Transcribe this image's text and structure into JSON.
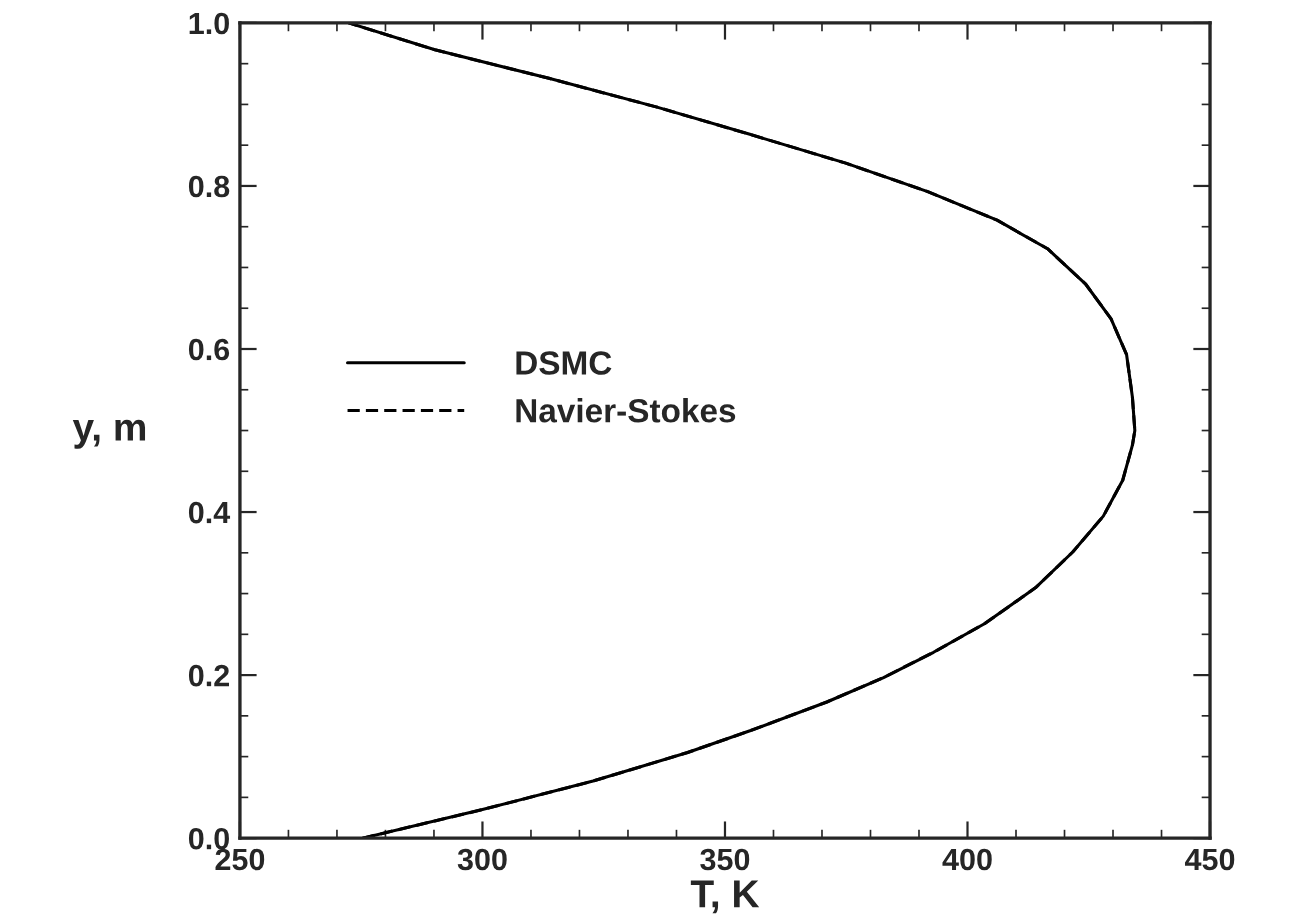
{
  "chart_data": {
    "type": "line",
    "xlabel": "T, K",
    "ylabel": "y, m",
    "xlim": [
      250,
      450
    ],
    "xticks": [
      250,
      300,
      350,
      400,
      450
    ],
    "ylim": [
      0,
      1
    ],
    "yticks": [
      {
        "value": 0,
        "label": "0.0"
      },
      {
        "value": 0.2,
        "label": "0.2"
      },
      {
        "value": 0.4,
        "label": "0.4"
      },
      {
        "value": 0.6,
        "label": "0.6"
      },
      {
        "value": 0.8,
        "label": "0.8"
      },
      {
        "value": 1,
        "label": "1.0"
      }
    ],
    "grid": false,
    "legend": "left",
    "marker": "none",
    "series": [
      {
        "name": "DSMC",
        "color": "#000000",
        "line_style": "solid",
        "x": [
          275.3,
          300,
          322.8,
          342.3,
          355.3,
          371,
          382.7,
          393,
          403.5,
          414,
          421.7,
          428,
          432,
          434,
          434.5,
          434,
          432.8,
          429.6,
          424.3,
          416.5,
          406.1,
          391.8,
          374.9,
          355.3,
          335.8,
          313.7,
          290.2,
          272.4
        ],
        "values": [
          0,
          0.035,
          0.07,
          0.105,
          0.132,
          0.167,
          0.197,
          0.228,
          0.263,
          0.307,
          0.351,
          0.395,
          0.439,
          0.482,
          0.5,
          0.541,
          0.593,
          0.637,
          0.68,
          0.723,
          0.758,
          0.793,
          0.828,
          0.863,
          0.897,
          0.932,
          0.967,
          1.0
        ]
      },
      {
        "name": "Navier-Stokes",
        "color": "#000000",
        "line_style": "dashed",
        "x": [
          275.3,
          300,
          322.8,
          342.3,
          355.3,
          371,
          382.7,
          393,
          403.5,
          414,
          421.7,
          428,
          432,
          434,
          434.5,
          434,
          432.8,
          429.6,
          424.3,
          416.5,
          406.1,
          391.8,
          374.9,
          355.3,
          335.8,
          313.7,
          290.2,
          272.4
        ],
        "values": [
          0,
          0.035,
          0.07,
          0.105,
          0.132,
          0.167,
          0.197,
          0.228,
          0.263,
          0.307,
          0.351,
          0.395,
          0.439,
          0.482,
          0.5,
          0.541,
          0.593,
          0.637,
          0.68,
          0.723,
          0.758,
          0.793,
          0.828,
          0.863,
          0.897,
          0.932,
          0.967,
          1.0
        ]
      }
    ]
  }
}
